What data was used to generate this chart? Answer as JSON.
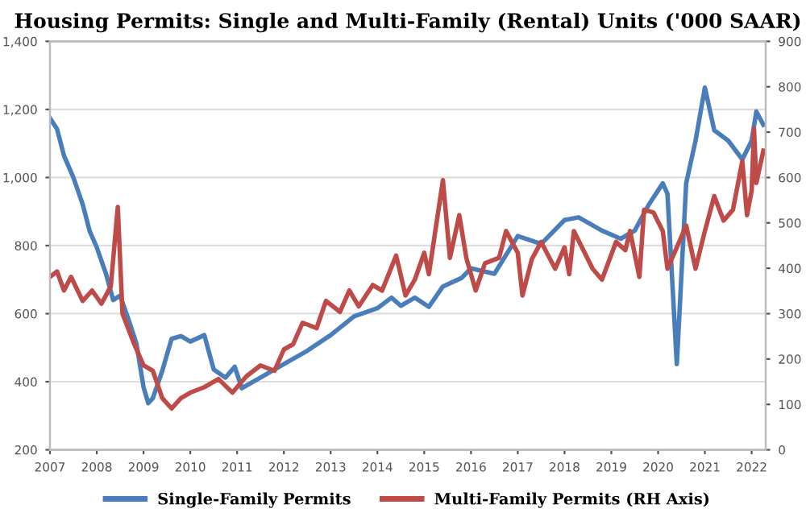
{
  "chart_data": {
    "type": "line",
    "title": "Housing Permits: Single and Multi-Family (Rental) Units ('000 SAAR)",
    "xlim": [
      2007,
      2022.3
    ],
    "xticks": [
      2007,
      2008,
      2009,
      2010,
      2011,
      2012,
      2013,
      2014,
      2015,
      2016,
      2017,
      2018,
      2019,
      2020,
      2021,
      2022
    ],
    "ylim": [
      200,
      1400
    ],
    "yticks": [
      {
        "value": 200,
        "label": "200"
      },
      {
        "value": 400,
        "label": "400"
      },
      {
        "value": 600,
        "label": "600"
      },
      {
        "value": 800,
        "label": "800"
      },
      {
        "value": 1000,
        "label": "1,000"
      },
      {
        "value": 1200,
        "label": "1,200"
      },
      {
        "value": 1400,
        "label": "1,400"
      }
    ],
    "y2lim": [
      0,
      900
    ],
    "y2ticks": [
      0,
      100,
      200,
      300,
      400,
      500,
      600,
      700,
      800,
      900
    ],
    "grid": "y",
    "legend": "bottom",
    "series": [
      {
        "name": "Single-Family Permits",
        "color": "#4a7ebb",
        "x": [
          2007.0,
          2007.15,
          2007.3,
          2007.5,
          2007.7,
          2007.85,
          2008.0,
          2008.2,
          2008.35,
          2008.5,
          2008.7,
          2008.85,
          2009.0,
          2009.1,
          2009.2,
          2009.4,
          2009.6,
          2009.8,
          2010.0,
          2010.3,
          2010.5,
          2010.75,
          2010.95,
          2011.1,
          2011.5,
          2012.0,
          2012.5,
          2013.0,
          2013.5,
          2014.0,
          2014.3,
          2014.5,
          2014.8,
          2015.1,
          2015.4,
          2015.8,
          2016.0,
          2016.5,
          2017.0,
          2017.5,
          2018.0,
          2018.3,
          2018.8,
          2019.2,
          2019.5,
          2019.8,
          2020.1,
          2020.2,
          2020.4,
          2020.6,
          2020.8,
          2021.0,
          2021.2,
          2021.5,
          2021.8,
          2022.0,
          2022.1,
          2022.25
        ],
        "values": [
          1174,
          1143,
          1064,
          1000,
          921,
          842,
          795,
          716,
          640,
          653,
          574,
          511,
          384,
          337,
          352,
          432,
          526,
          534,
          518,
          537,
          436,
          412,
          444,
          381,
          412,
          452,
          491,
          537,
          592,
          616,
          647,
          623,
          647,
          620,
          680,
          705,
          733,
          717,
          828,
          805,
          875,
          883,
          844,
          820,
          844,
          920,
          983,
          952,
          452,
          983,
          1108,
          1264,
          1139,
          1108,
          1053,
          1108,
          1194,
          1155
        ]
      },
      {
        "name": "Multi-Family Permits (RH Axis)",
        "color": "#be4b48",
        "axis": "y2",
        "x": [
          2007.0,
          2007.15,
          2007.3,
          2007.45,
          2007.7,
          2007.9,
          2008.1,
          2008.3,
          2008.45,
          2008.55,
          2008.8,
          2009.0,
          2009.2,
          2009.4,
          2009.6,
          2009.8,
          2010.0,
          2010.3,
          2010.6,
          2010.9,
          2011.2,
          2011.5,
          2011.8,
          2012.0,
          2012.2,
          2012.4,
          2012.7,
          2012.9,
          2013.2,
          2013.4,
          2013.6,
          2013.9,
          2014.1,
          2014.4,
          2014.6,
          2014.8,
          2015.0,
          2015.1,
          2015.4,
          2015.55,
          2015.75,
          2015.9,
          2016.1,
          2016.3,
          2016.6,
          2016.75,
          2017.0,
          2017.1,
          2017.3,
          2017.5,
          2017.8,
          2018.0,
          2018.1,
          2018.2,
          2018.6,
          2018.8,
          2019.1,
          2019.3,
          2019.4,
          2019.6,
          2019.7,
          2019.9,
          2020.1,
          2020.2,
          2020.4,
          2020.6,
          2020.8,
          2021.0,
          2021.2,
          2021.4,
          2021.6,
          2021.8,
          2021.9,
          2022.0,
          2022.05,
          2022.1,
          2022.25
        ],
        "values": [
          381,
          393,
          351,
          381,
          328,
          351,
          322,
          360,
          535,
          300,
          233,
          186,
          174,
          114,
          91,
          114,
          126,
          138,
          156,
          126,
          162,
          186,
          174,
          221,
          233,
          280,
          268,
          328,
          304,
          351,
          316,
          363,
          351,
          428,
          340,
          375,
          434,
          387,
          594,
          423,
          517,
          423,
          351,
          411,
          423,
          482,
          434,
          340,
          420,
          458,
          399,
          446,
          387,
          482,
          399,
          375,
          458,
          440,
          482,
          381,
          529,
          523,
          482,
          399,
          446,
          494,
          399,
          482,
          559,
          505,
          529,
          636,
          517,
          571,
          707,
          588,
          659
        ]
      }
    ]
  }
}
